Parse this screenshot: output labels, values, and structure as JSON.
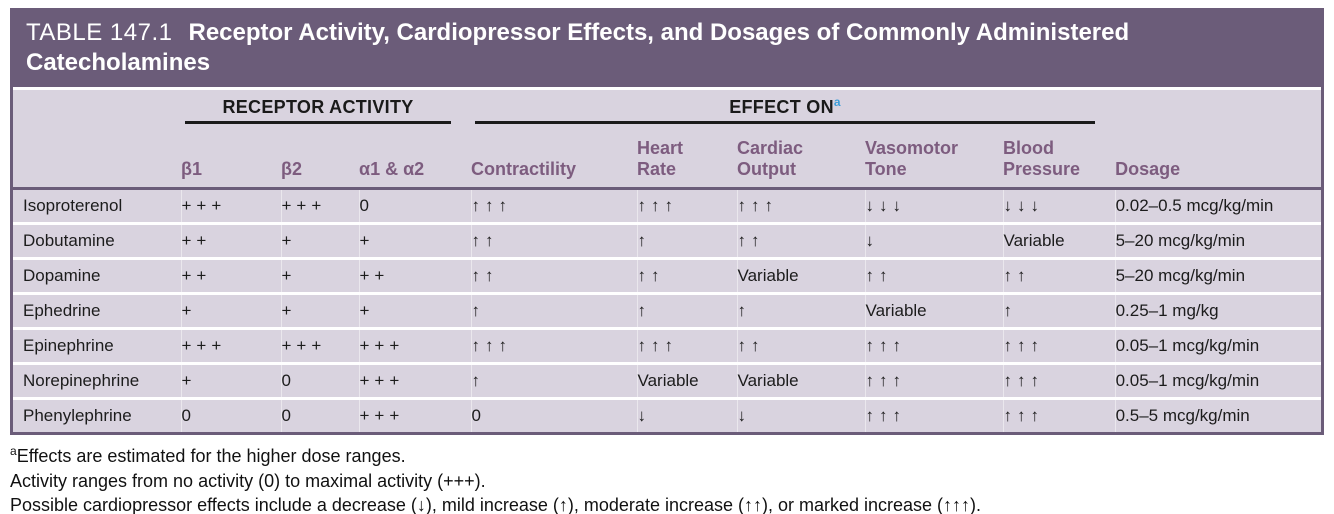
{
  "table": {
    "number": "TABLE 147.1",
    "title": "Receptor Activity, Cardiopressor Effects, and Dosages of Commonly Administered Catecholamines",
    "groups": {
      "receptor_activity": "RECEPTOR ACTIVITY",
      "effect_on": "EFFECT ON",
      "effect_on_note_marker": "a"
    },
    "column_headers": {
      "drug": "",
      "beta1": "β1",
      "beta2": "β2",
      "alpha": "α1 & α2",
      "contractility": "Contractility",
      "heart_rate": "Heart\nRate",
      "cardiac_output": "Cardiac\nOutput",
      "vasomotor_tone": "Vasomotor\nTone",
      "blood_pressure": "Blood\nPressure",
      "dosage": "Dosage"
    },
    "rows": [
      {
        "drug": "Isoproterenol",
        "beta1": "+++",
        "beta2": "+++",
        "alpha": "0",
        "contractility": "↑↑↑",
        "heart_rate": "↑↑↑",
        "cardiac_output": "↑↑↑",
        "vasomotor_tone": "↓↓↓",
        "blood_pressure": "↓↓↓",
        "dosage": "0.02–0.5 mcg/kg/min"
      },
      {
        "drug": "Dobutamine",
        "beta1": "++",
        "beta2": "+",
        "alpha": "+",
        "contractility": "↑↑",
        "heart_rate": "↑",
        "cardiac_output": "↑↑",
        "vasomotor_tone": "↓",
        "blood_pressure": "Variable",
        "dosage": "5–20 mcg/kg/min"
      },
      {
        "drug": "Dopamine",
        "beta1": "++",
        "beta2": "+",
        "alpha": "++",
        "contractility": "↑↑",
        "heart_rate": "↑↑",
        "cardiac_output": "Variable",
        "vasomotor_tone": "↑↑",
        "blood_pressure": "↑↑",
        "dosage": "5–20 mcg/kg/min"
      },
      {
        "drug": "Ephedrine",
        "beta1": "+",
        "beta2": "+",
        "alpha": "+",
        "contractility": "↑",
        "heart_rate": "↑",
        "cardiac_output": "↑",
        "vasomotor_tone": "Variable",
        "blood_pressure": "↑",
        "dosage": "0.25–1 mg/kg"
      },
      {
        "drug": "Epinephrine",
        "beta1": "+++",
        "beta2": "+++",
        "alpha": "+++",
        "contractility": "↑↑↑",
        "heart_rate": "↑↑↑",
        "cardiac_output": "↑↑",
        "vasomotor_tone": "↑↑↑",
        "blood_pressure": "↑↑↑",
        "dosage": "0.05–1 mcg/kg/min"
      },
      {
        "drug": "Norepinephrine",
        "beta1": "+",
        "beta2": "0",
        "alpha": "+++",
        "contractility": "↑",
        "heart_rate": "Variable",
        "cardiac_output": "Variable",
        "vasomotor_tone": "↑↑↑",
        "blood_pressure": "↑↑↑",
        "dosage": "0.05–1 mcg/kg/min"
      },
      {
        "drug": "Phenylephrine",
        "beta1": "0",
        "beta2": "0",
        "alpha": "+++",
        "contractility": "0",
        "heart_rate": "↓",
        "cardiac_output": "↓",
        "vasomotor_tone": "↑↑↑",
        "blood_pressure": "↑↑↑",
        "dosage": "0.5–5 mcg/kg/min"
      }
    ]
  },
  "footnotes": [
    {
      "marker": "a",
      "text": "Effects are estimated for the higher dose ranges."
    },
    {
      "marker": "",
      "text": "Activity ranges from no activity (0) to maximal activity (+++)."
    },
    {
      "marker": "",
      "text": "Possible cardiopressor effects include a decrease (↓), mild increase (↑), moderate increase (↑↑), or marked increase (↑↑↑)."
    }
  ],
  "colors": {
    "title_bar_purple": "#6b5c79",
    "body_lavender": "#d9d3df",
    "column_header_plum": "#7d5c7f",
    "note_marker_blue": "#3f9ed8"
  }
}
